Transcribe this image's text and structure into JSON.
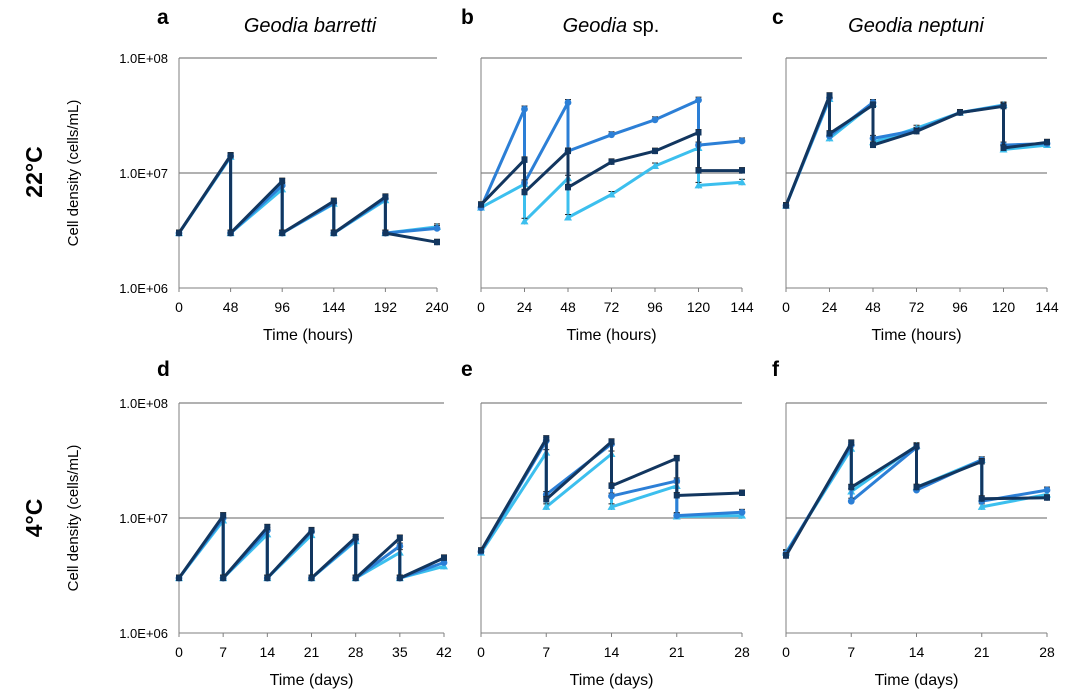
{
  "colors": {
    "dark": "#12365f",
    "mid": "#2c7fd6",
    "light": "#3cbfee"
  },
  "row_labels": [
    "22°C",
    "4°C"
  ],
  "y_axis_title": "Cell density (cells/mL)",
  "y_tick_labels": [
    "1.0E+06",
    "1.0E+07",
    "1.0E+08"
  ],
  "chart_data": [
    {
      "id": "a",
      "type": "line",
      "title": "Geodia barretti",
      "yscale": "log",
      "ylim": [
        1000000,
        100000000
      ],
      "xlabel": "Time (hours)",
      "ylabel": "Cell density (cells/mL)",
      "xlim": [
        0,
        240
      ],
      "x_ticks": [
        "0",
        "48",
        "96",
        "144",
        "192",
        "240"
      ],
      "grid": true,
      "series": [
        {
          "x": [
            0,
            48,
            48,
            96,
            96,
            144,
            144,
            192,
            192,
            240
          ],
          "y": [
            3000000,
            14200000,
            3000000,
            8500000,
            3000000,
            5700000,
            3000000,
            6200000,
            3000000,
            2500000
          ]
        },
        {
          "x": [
            0,
            48,
            48,
            96,
            96,
            144,
            144,
            192,
            192,
            240
          ],
          "y": [
            3000000,
            14000000,
            3000000,
            7800000,
            3000000,
            5500000,
            3000000,
            6000000,
            3000000,
            3300000
          ]
        },
        {
          "x": [
            0,
            48,
            48,
            96,
            96,
            144,
            144,
            192,
            192,
            240
          ],
          "y": [
            3000000,
            13800000,
            3000000,
            7200000,
            3000000,
            5400000,
            3000000,
            5800000,
            3000000,
            3400000
          ]
        }
      ]
    },
    {
      "id": "b",
      "type": "line",
      "title": "Geodia sp.",
      "yscale": "log",
      "ylim": [
        1000000,
        100000000
      ],
      "xlabel": "Time (hours)",
      "xlim": [
        0,
        144
      ],
      "x_ticks": [
        "0",
        "24",
        "48",
        "72",
        "96",
        "120",
        "144"
      ],
      "grid": true,
      "series": [
        {
          "x": [
            0,
            24,
            24,
            48,
            48,
            72,
            96,
            120,
            120,
            144
          ],
          "y": [
            5300000,
            13000000,
            6800000,
            15500000,
            7500000,
            12500000,
            15500000,
            22500000,
            10500000,
            10500000
          ]
        },
        {
          "x": [
            0,
            24,
            24,
            48,
            48,
            72,
            96,
            120,
            120,
            144
          ],
          "y": [
            5000000,
            36000000,
            8200000,
            41000000,
            15500000,
            21500000,
            29000000,
            43000000,
            17500000,
            19000000
          ]
        },
        {
          "x": [
            0,
            24,
            24,
            48,
            48,
            72,
            96,
            120,
            120,
            144
          ],
          "y": [
            5000000,
            8000000,
            3800000,
            9000000,
            4100000,
            6500000,
            11500000,
            16500000,
            7800000,
            8300000
          ]
        }
      ]
    },
    {
      "id": "c",
      "type": "line",
      "title": "Geodia neptuni",
      "yscale": "log",
      "ylim": [
        1000000,
        100000000
      ],
      "xlabel": "Time (hours)",
      "xlim": [
        0,
        144
      ],
      "x_ticks": [
        "0",
        "24",
        "48",
        "72",
        "96",
        "120",
        "144"
      ],
      "grid": true,
      "series": [
        {
          "x": [
            0,
            24,
            24,
            48,
            48,
            72,
            96,
            120,
            120,
            144
          ],
          "y": [
            5200000,
            47000000,
            22000000,
            39000000,
            17500000,
            23000000,
            33500000,
            38000000,
            16500000,
            18500000
          ]
        },
        {
          "x": [
            0,
            24,
            24,
            48,
            48,
            72,
            96,
            120,
            120,
            144
          ],
          "y": [
            5200000,
            45000000,
            21000000,
            41000000,
            20000000,
            23500000,
            33500000,
            38500000,
            17500000,
            18000000
          ]
        },
        {
          "x": [
            0,
            24,
            24,
            48,
            48,
            72,
            96,
            120,
            120,
            144
          ],
          "y": [
            5200000,
            44000000,
            20000000,
            40000000,
            18500000,
            24500000,
            33500000,
            39000000,
            16000000,
            17500000
          ]
        }
      ]
    },
    {
      "id": "d",
      "type": "line",
      "yscale": "log",
      "ylim": [
        1000000,
        100000000
      ],
      "xlabel": "Time (days)",
      "ylabel": "Cell density (cells/mL)",
      "xlim": [
        0,
        42
      ],
      "x_ticks": [
        "0",
        "7",
        "14",
        "21",
        "28",
        "35",
        "42"
      ],
      "grid": true,
      "series": [
        {
          "x": [
            0,
            7,
            7,
            14,
            14,
            21,
            21,
            28,
            28,
            35,
            35,
            42
          ],
          "y": [
            3000000,
            10500000,
            3000000,
            8300000,
            3000000,
            7800000,
            3000000,
            6800000,
            3000000,
            6700000,
            3000000,
            4500000
          ]
        },
        {
          "x": [
            0,
            7,
            7,
            14,
            14,
            21,
            21,
            28,
            28,
            35,
            35,
            42
          ],
          "y": [
            3000000,
            10000000,
            3000000,
            7800000,
            3000000,
            7600000,
            3000000,
            6500000,
            3000000,
            5700000,
            3000000,
            4100000
          ]
        },
        {
          "x": [
            0,
            7,
            7,
            14,
            14,
            21,
            21,
            28,
            28,
            35,
            35,
            42
          ],
          "y": [
            3000000,
            9500000,
            3000000,
            7200000,
            3000000,
            7100000,
            3000000,
            6300000,
            3000000,
            5000000,
            3000000,
            3800000
          ]
        }
      ]
    },
    {
      "id": "e",
      "type": "line",
      "yscale": "log",
      "ylim": [
        1000000,
        100000000
      ],
      "xlabel": "Time (days)",
      "xlim": [
        0,
        28
      ],
      "x_ticks": [
        "0",
        "7",
        "14",
        "21",
        "28"
      ],
      "grid": true,
      "series": [
        {
          "x": [
            0,
            7,
            7,
            14,
            14,
            21,
            21,
            28
          ],
          "y": [
            5200000,
            49000000,
            14500000,
            46000000,
            19000000,
            33000000,
            15700000,
            16500000
          ]
        },
        {
          "x": [
            0,
            7,
            7,
            14,
            14,
            21,
            21,
            28
          ],
          "y": [
            5100000,
            47000000,
            16000000,
            44000000,
            15500000,
            21000000,
            10500000,
            11200000
          ]
        },
        {
          "x": [
            0,
            7,
            7,
            14,
            14,
            21,
            21,
            28
          ],
          "y": [
            5000000,
            37000000,
            12500000,
            36000000,
            12500000,
            19000000,
            10300000,
            10500000
          ]
        }
      ]
    },
    {
      "id": "f",
      "type": "line",
      "yscale": "log",
      "ylim": [
        1000000,
        100000000
      ],
      "xlabel": "Time (days)",
      "xlim": [
        0,
        28
      ],
      "x_ticks": [
        "0",
        "7",
        "14",
        "21",
        "28"
      ],
      "grid": true,
      "series": [
        {
          "x": [
            0,
            7,
            7,
            14,
            14,
            21,
            21,
            28
          ],
          "y": [
            4700000,
            45000000,
            18500000,
            42000000,
            18500000,
            31000000,
            14700000,
            15000000
          ]
        },
        {
          "x": [
            0,
            7,
            7,
            14,
            14,
            21,
            21,
            28
          ],
          "y": [
            4900000,
            43000000,
            14000000,
            41000000,
            17500000,
            32000000,
            14000000,
            17500000
          ]
        },
        {
          "x": [
            0,
            7,
            7,
            14,
            14,
            21,
            21,
            28
          ],
          "y": [
            5000000,
            40000000,
            17000000,
            42500000,
            18500000,
            32000000,
            12500000,
            16000000
          ]
        }
      ]
    }
  ]
}
